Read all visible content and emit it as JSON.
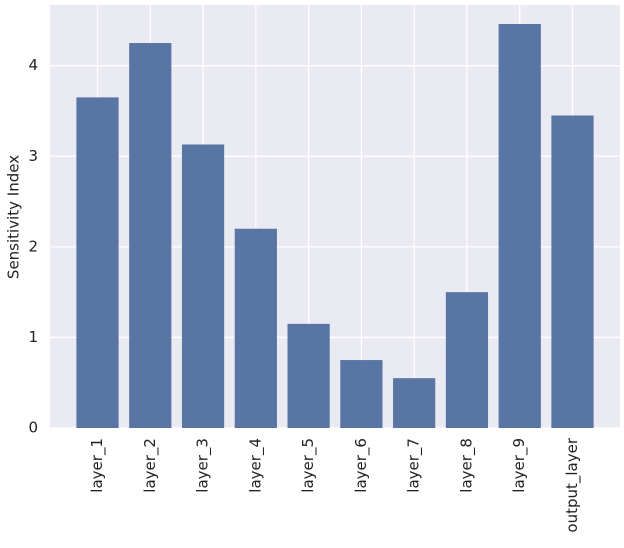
{
  "chart_data": {
    "type": "bar",
    "y_label": "Sensitivity Index",
    "categories": [
      "layer_1",
      "layer_2",
      "layer_3",
      "layer_4",
      "layer_5",
      "layer_6",
      "layer_7",
      "layer_8",
      "layer_9",
      "output_layer"
    ],
    "values": [
      3.65,
      4.25,
      3.13,
      2.2,
      1.15,
      0.75,
      0.55,
      1.5,
      4.46,
      3.45
    ],
    "color": "#5875a4",
    "background": "#eaeaf2",
    "ylim": [
      0,
      4.67
    ],
    "yticks": [
      0,
      1,
      2,
      3,
      4
    ],
    "grid": true
  }
}
